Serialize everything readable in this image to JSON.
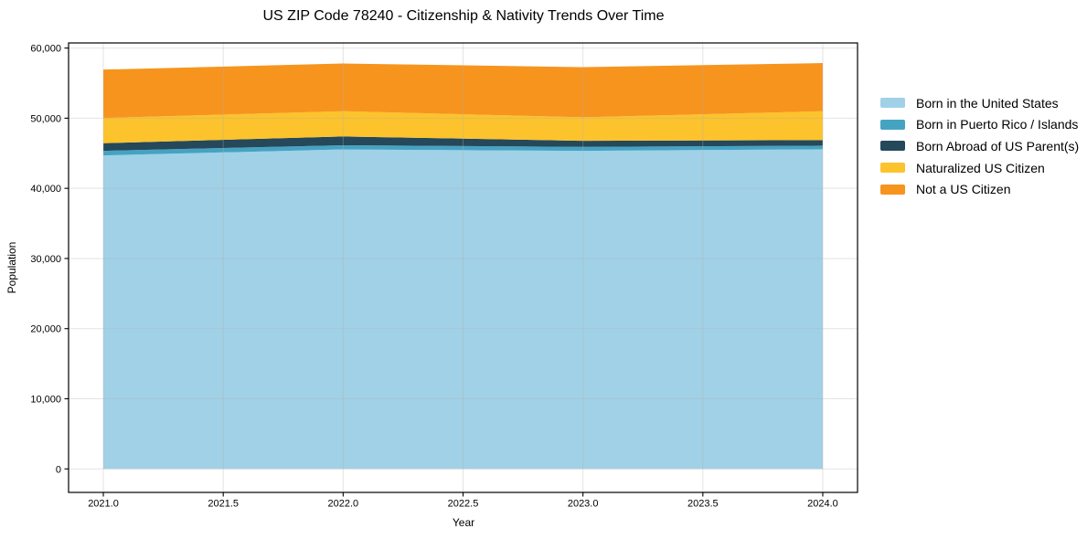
{
  "figure": {
    "title": "US ZIP Code 78240 - Citizenship & Nativity Trends Over Time"
  },
  "chart_data": {
    "type": "area",
    "stacked": true,
    "title": "US ZIP Code 78240 - Citizenship & Nativity Trends Over Time",
    "xlabel": "Year",
    "ylabel": "Population",
    "x": [
      2021.0,
      2022.0,
      2023.0,
      2024.0
    ],
    "series": [
      {
        "name": "Born in the United States",
        "color": "#A0D1E7",
        "values": [
          44700,
          45550,
          45350,
          45570
        ]
      },
      {
        "name": "Born in Puerto Rico / Islands",
        "color": "#45A3C2",
        "values": [
          650,
          600,
          560,
          520
        ]
      },
      {
        "name": "Born Abroad of US Parent(s)",
        "color": "#25485B",
        "values": [
          1080,
          1250,
          870,
          790
        ]
      },
      {
        "name": "Naturalized US Citizen",
        "color": "#FCC32D",
        "values": [
          3600,
          3600,
          3350,
          4120
        ]
      },
      {
        "name": "Not a US Citizen",
        "color": "#F7941E",
        "values": [
          6900,
          6800,
          7150,
          6860
        ]
      }
    ],
    "stack_totals": [
      56930,
      57800,
      57280,
      57860
    ],
    "xticks": {
      "values": [
        2021.0,
        2021.5,
        2022.0,
        2022.5,
        2023.0,
        2023.5,
        2024.0
      ],
      "labels": [
        "2021.0",
        "2021.5",
        "2022.0",
        "2022.5",
        "2023.0",
        "2023.5",
        "2024.0"
      ]
    },
    "yticks": {
      "values": [
        0,
        10000,
        20000,
        30000,
        40000,
        50000,
        60000
      ],
      "labels": [
        "0",
        "10,000",
        "20,000",
        "30,000",
        "40,000",
        "50,000",
        "60,000"
      ]
    },
    "xlim": [
      2020.855,
      2024.145
    ],
    "ylim": [
      -3350,
      60730
    ],
    "grid": true,
    "grid_color": "#b0b0b0",
    "spine_color": "#000000",
    "background_color": "#ffffff",
    "legend_position": "right-outside"
  }
}
